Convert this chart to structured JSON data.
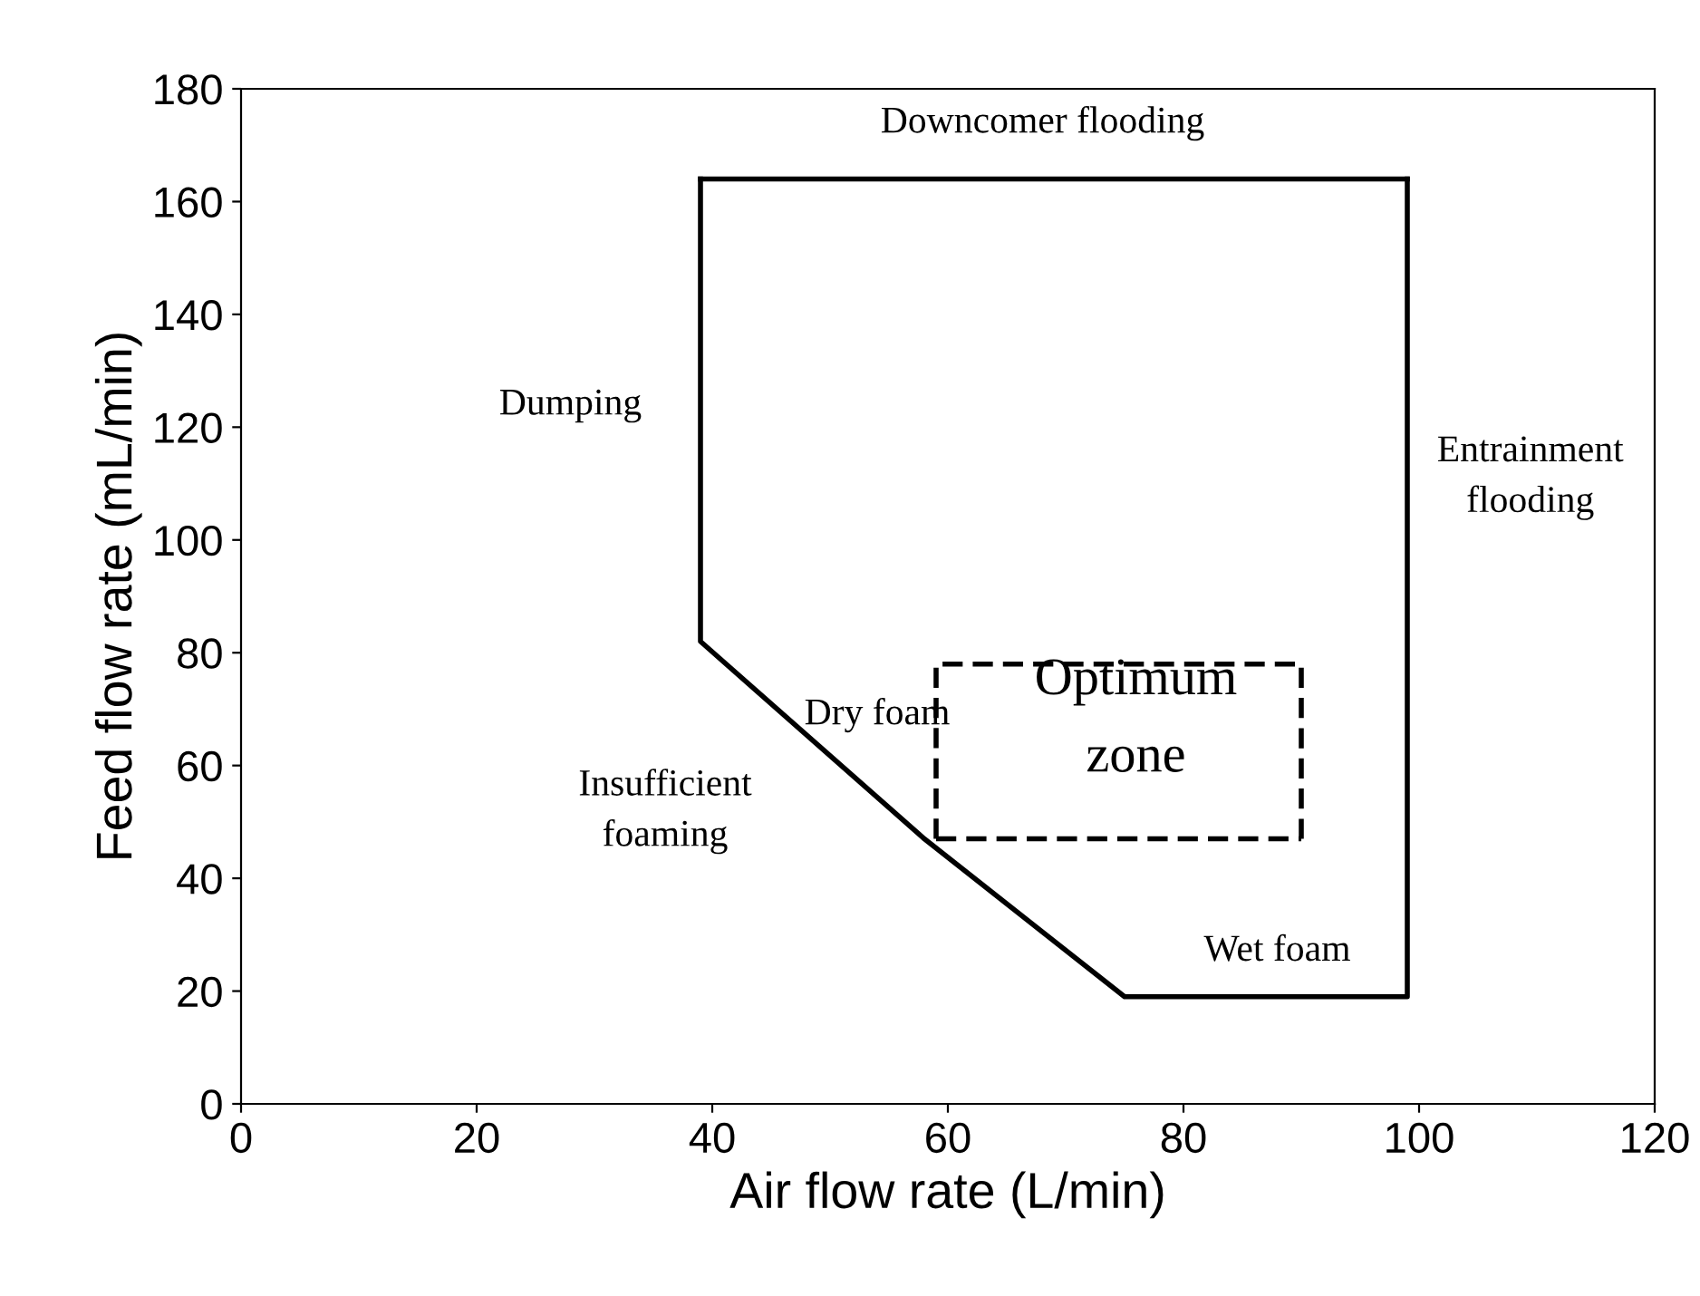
{
  "chart_data": {
    "type": "line",
    "xlabel": "Air flow rate (L/min)",
    "ylabel": "Feed flow rate (mL/min)",
    "xlim": [
      0,
      120
    ],
    "ylim": [
      0,
      180
    ],
    "xticks": [
      0,
      20,
      40,
      60,
      80,
      100,
      120
    ],
    "yticks": [
      0,
      20,
      40,
      60,
      80,
      100,
      120,
      140,
      160,
      180
    ],
    "grid": false,
    "marker": "none",
    "series": [
      {
        "color": "#000000",
        "line_style": "solid",
        "x": [
          39,
          39,
          58,
          75,
          99,
          99
        ],
        "values": [
          164,
          82,
          47,
          19,
          19,
          164
        ]
      },
      {
        "color": "#000000",
        "line_style": "solid",
        "x": [
          39,
          99
        ],
        "values": [
          164,
          164
        ]
      },
      {
        "color": "#000000",
        "line_style": "dashed",
        "x": [
          59,
          59,
          90,
          90
        ],
        "values": [
          47,
          78,
          78,
          47
        ]
      },
      {
        "color": "#000000",
        "line_style": "dashed",
        "x": [
          59,
          90
        ],
        "values": [
          47,
          47
        ]
      }
    ],
    "annotations": [
      "Downcomer flooding",
      "Dumping",
      "Entrainment\nflooding",
      "Optimum\nzone",
      "Dry foam",
      "Insufficient\nfoaming",
      "Wet foam"
    ]
  }
}
